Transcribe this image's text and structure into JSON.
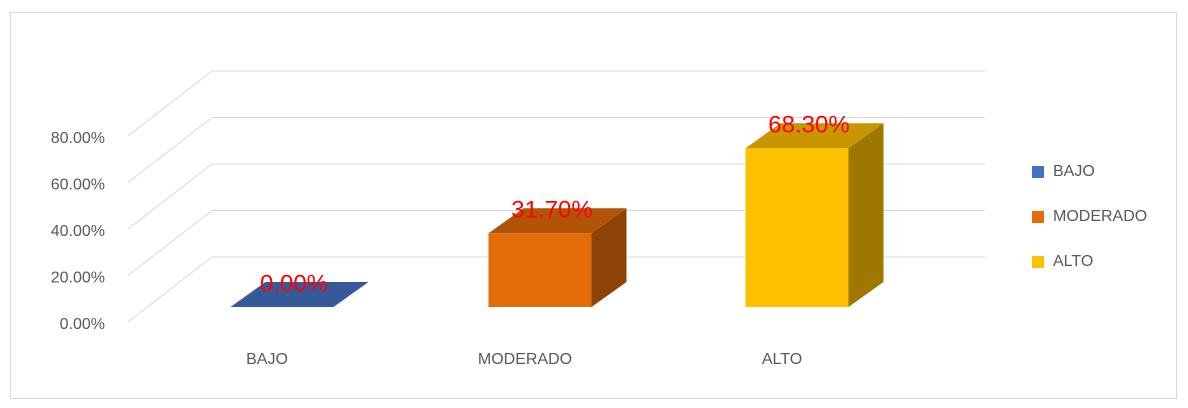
{
  "chart_data": {
    "type": "bar3d",
    "categories": [
      "BAJO",
      "MODERADO",
      "ALTO"
    ],
    "series": [
      {
        "name": "BAJO",
        "color": "#4472C4"
      },
      {
        "name": "MODERADO",
        "color": "#E36C09"
      },
      {
        "name": "ALTO",
        "color": "#FFC000"
      }
    ],
    "values": [
      0,
      31.7,
      68.3
    ],
    "value_labels": [
      "0.00%",
      "31.70%",
      "68.30%"
    ],
    "ylim": [
      0,
      80
    ],
    "yticks": [
      {
        "value": 0,
        "label": "0.00%"
      },
      {
        "value": 20,
        "label": "20.00%"
      },
      {
        "value": 40,
        "label": "40.00%"
      },
      {
        "value": 60,
        "label": "60.00%"
      },
      {
        "value": 80,
        "label": "80.00%"
      }
    ],
    "grid": true,
    "legend": "right"
  }
}
